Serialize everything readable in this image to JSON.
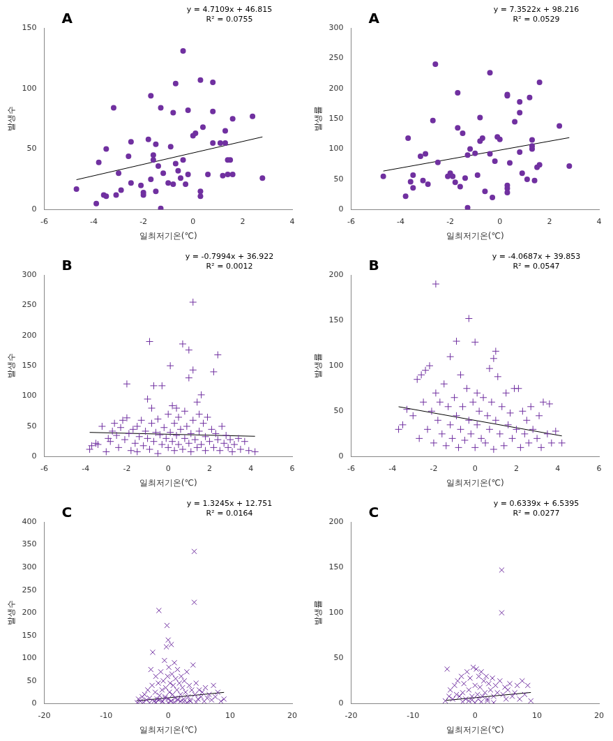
{
  "chart_data": [
    {
      "type": "scatter",
      "title": "A",
      "x_label": "일최저기온(℃)",
      "y_label": "발생수",
      "color": "#7030a0",
      "marker": "circle",
      "grid": false,
      "xlim": [
        -6,
        4
      ],
      "xticks": [
        -6,
        -4,
        -2,
        0,
        2,
        4
      ],
      "ylim": [
        0,
        150
      ],
      "yticks": [
        0,
        50,
        100,
        150
      ],
      "x": [
        -4.7,
        -3.9,
        -3.8,
        -3.6,
        -3.5,
        -3.5,
        -3.2,
        -3.1,
        -3.0,
        -2.9,
        -2.6,
        -2.5,
        -2.5,
        -2.1,
        -2.0,
        -2.0,
        -1.8,
        -1.7,
        -1.7,
        -1.6,
        -1.6,
        -1.5,
        -1.5,
        -1.4,
        -1.3,
        -1.3,
        -1.2,
        -1.0,
        -0.9,
        -0.8,
        -0.8,
        -0.7,
        -0.7,
        -0.6,
        -0.5,
        -0.4,
        -0.4,
        -0.3,
        -0.2,
        -0.2,
        0.0,
        0.1,
        0.3,
        0.3,
        0.3,
        0.4,
        0.6,
        0.8,
        0.8,
        0.8,
        1.1,
        1.2,
        1.3,
        1.3,
        1.4,
        1.4,
        1.5,
        1.6,
        1.6,
        2.4,
        2.8
      ],
      "values": [
        17,
        5,
        39,
        12,
        50,
        11,
        84,
        12,
        30,
        16,
        44,
        56,
        22,
        20,
        14,
        12,
        58,
        94,
        25,
        45,
        41,
        15,
        54,
        36,
        84,
        1,
        30,
        22,
        52,
        21,
        80,
        104,
        38,
        32,
        26,
        131,
        41,
        21,
        82,
        29,
        61,
        63,
        15,
        11,
        107,
        68,
        29,
        105,
        81,
        55,
        55,
        28,
        65,
        55,
        41,
        29,
        41,
        29,
        75,
        77,
        26
      ],
      "trendline": {
        "slope": 4.7109,
        "intercept": 46.815,
        "label": "y = 4.7109x + 46.815",
        "r2": 0.0755,
        "r2_label": "R² = 0.0755"
      }
    },
    {
      "type": "scatter",
      "title": "A",
      "x_label": "일최저기온(℃)",
      "y_label": "발생률",
      "color": "#7030a0",
      "marker": "circle",
      "grid": false,
      "xlim": [
        -6,
        4
      ],
      "xticks": [
        -6,
        -4,
        -2,
        0,
        2,
        4
      ],
      "ylim": [
        0,
        300
      ],
      "yticks": [
        0,
        50,
        100,
        150,
        200,
        250,
        300
      ],
      "x": [
        -4.7,
        -3.8,
        -3.7,
        -3.6,
        -3.5,
        -3.5,
        -3.2,
        -3.1,
        -3.0,
        -2.9,
        -2.7,
        -2.6,
        -2.5,
        -2.1,
        -2.0,
        -1.9,
        -1.8,
        -1.7,
        -1.7,
        -1.6,
        -1.5,
        -1.4,
        -1.3,
        -1.3,
        -1.2,
        -1.0,
        -0.9,
        -0.8,
        -0.8,
        -0.7,
        -0.6,
        -0.4,
        -0.4,
        -0.3,
        -0.2,
        -0.1,
        0.0,
        0.3,
        0.3,
        0.3,
        0.3,
        0.3,
        0.4,
        0.6,
        0.8,
        0.8,
        0.8,
        0.9,
        1.1,
        1.2,
        1.3,
        1.3,
        1.3,
        1.4,
        1.5,
        1.6,
        1.6,
        2.4,
        2.8
      ],
      "values": [
        55,
        22,
        118,
        46,
        57,
        36,
        88,
        48,
        92,
        42,
        147,
        240,
        78,
        55,
        60,
        55,
        45,
        193,
        135,
        38,
        126,
        52,
        90,
        3,
        100,
        93,
        57,
        152,
        113,
        118,
        30,
        226,
        92,
        20,
        80,
        120,
        116,
        188,
        190,
        40,
        35,
        28,
        77,
        145,
        95,
        178,
        160,
        60,
        50,
        185,
        100,
        105,
        115,
        48,
        70,
        210,
        74,
        138,
        72
      ],
      "trendline": {
        "slope": 7.3522,
        "intercept": 98.216,
        "label": "y = 7.3522x + 98.216",
        "r2": 0.0529,
        "r2_label": "R² = 0.0529"
      }
    },
    {
      "type": "scatter",
      "title": "B",
      "x_label": "일최저기온(℃)",
      "y_label": "발생수",
      "color": "#7030a0",
      "marker": "plus",
      "grid": false,
      "xlim": [
        -6,
        6
      ],
      "xticks": [
        -6,
        -4,
        -2,
        0,
        2,
        4,
        6
      ],
      "ylim": [
        0,
        300
      ],
      "yticks": [
        0,
        50,
        100,
        150,
        200,
        250,
        300
      ],
      "x": [
        -3.8,
        -3.7,
        -3.5,
        -3.4,
        -3.2,
        -3.0,
        -2.9,
        -2.8,
        -2.7,
        -2.6,
        -2.5,
        -2.4,
        -2.3,
        -2.2,
        -2.1,
        -2.0,
        -2.0,
        -1.9,
        -1.8,
        -1.7,
        -1.6,
        -1.5,
        -1.5,
        -1.4,
        -1.3,
        -1.2,
        -1.1,
        -1.0,
        -1.0,
        -0.9,
        -0.9,
        -0.8,
        -0.8,
        -0.7,
        -0.7,
        -0.6,
        -0.5,
        -0.5,
        -0.4,
        -0.3,
        -0.3,
        -0.2,
        -0.1,
        0.0,
        0.0,
        0.1,
        0.1,
        0.2,
        0.2,
        0.3,
        0.3,
        0.4,
        0.4,
        0.5,
        0.5,
        0.6,
        0.7,
        0.7,
        0.8,
        0.8,
        0.9,
        1.0,
        1.0,
        1.0,
        1.1,
        1.1,
        1.2,
        1.2,
        1.2,
        1.3,
        1.4,
        1.4,
        1.5,
        1.5,
        1.6,
        1.6,
        1.7,
        1.8,
        1.8,
        1.9,
        2.0,
        2.1,
        2.2,
        2.2,
        2.3,
        2.4,
        2.4,
        2.5,
        2.6,
        2.7,
        2.8,
        2.9,
        3.0,
        3.1,
        3.2,
        3.4,
        3.5,
        3.7,
        3.9,
        4.2
      ],
      "values": [
        12,
        18,
        22,
        20,
        50,
        8,
        30,
        25,
        42,
        55,
        35,
        15,
        48,
        60,
        28,
        120,
        64,
        38,
        10,
        45,
        22,
        50,
        8,
        33,
        60,
        18,
        42,
        95,
        30,
        190,
        12,
        55,
        80,
        117,
        25,
        40,
        5,
        62,
        36,
        117,
        20,
        48,
        30,
        15,
        70,
        150,
        40,
        84,
        25,
        10,
        55,
        80,
        35,
        20,
        65,
        45,
        186,
        12,
        30,
        75,
        50,
        176,
        130,
        22,
        38,
        8,
        255,
        143,
        60,
        28,
        90,
        15,
        42,
        70,
        102,
        20,
        55,
        33,
        10,
        65,
        25,
        45,
        140,
        15,
        38,
        168,
        28,
        10,
        50,
        22,
        35,
        15,
        28,
        8,
        20,
        30,
        12,
        25,
        10,
        8
      ],
      "trendline": {
        "slope": -0.7994,
        "intercept": 36.922,
        "label": "y = -0.7994x + 36.922",
        "r2": 0.0012,
        "r2_label": "R² = 0.0012"
      }
    },
    {
      "type": "scatter",
      "title": "B",
      "x_label": "일최저기온(℃)",
      "y_label": "발생률",
      "color": "#7030a0",
      "marker": "plus",
      "grid": false,
      "xlim": [
        -6,
        6
      ],
      "xticks": [
        -6,
        -4,
        -2,
        0,
        2,
        4,
        6
      ],
      "ylim": [
        0,
        200
      ],
      "yticks": [
        0,
        50,
        100,
        150,
        200
      ],
      "x": [
        -3.7,
        -3.5,
        -3.3,
        -3.0,
        -2.8,
        -2.7,
        -2.6,
        -2.5,
        -2.4,
        -2.3,
        -2.2,
        -2.1,
        -2.0,
        -1.9,
        -1.9,
        -1.8,
        -1.7,
        -1.6,
        -1.5,
        -1.4,
        -1.3,
        -1.2,
        -1.2,
        -1.1,
        -1.0,
        -0.9,
        -0.9,
        -0.8,
        -0.7,
        -0.7,
        -0.6,
        -0.5,
        -0.4,
        -0.3,
        -0.3,
        -0.2,
        -0.1,
        0.0,
        0.0,
        0.1,
        0.1,
        0.2,
        0.3,
        0.4,
        0.5,
        0.6,
        0.7,
        0.7,
        0.8,
        0.9,
        0.9,
        1.0,
        1.0,
        1.1,
        1.2,
        1.3,
        1.4,
        1.5,
        1.6,
        1.7,
        1.8,
        1.9,
        2.0,
        2.1,
        2.2,
        2.3,
        2.4,
        2.5,
        2.6,
        2.7,
        2.8,
        3.0,
        3.1,
        3.2,
        3.3,
        3.5,
        3.6,
        3.7,
        3.9,
        4.2
      ],
      "values": [
        30,
        35,
        52,
        45,
        85,
        20,
        90,
        60,
        95,
        30,
        100,
        50,
        15,
        190,
        70,
        40,
        60,
        25,
        80,
        12,
        55,
        110,
        35,
        20,
        65,
        127,
        45,
        10,
        90,
        30,
        55,
        18,
        75,
        152,
        40,
        25,
        60,
        126,
        10,
        70,
        35,
        50,
        20,
        65,
        15,
        45,
        97,
        30,
        60,
        108,
        8,
        116,
        40,
        88,
        25,
        55,
        12,
        70,
        35,
        48,
        20,
        75,
        30,
        75,
        10,
        50,
        25,
        40,
        15,
        55,
        30,
        20,
        45,
        10,
        60,
        25,
        58,
        15,
        28,
        15
      ],
      "trendline": {
        "slope": -4.0687,
        "intercept": 39.853,
        "label": "y = -4.0687x + 39.853",
        "r2": 0.0547,
        "r2_label": "R² = 0.0547"
      }
    },
    {
      "type": "scatter",
      "title": "C",
      "x_label": "일최저기온(℃)",
      "y_label": "발생수",
      "color": "#7030a0",
      "marker": "x",
      "grid": false,
      "xlim": [
        -20,
        20
      ],
      "xticks": [
        -20,
        -10,
        0,
        10,
        20
      ],
      "ylim": [
        0,
        400
      ],
      "yticks": [
        0,
        50,
        100,
        150,
        200,
        250,
        300,
        350,
        400
      ],
      "x": [
        -5,
        -4.8,
        -4.5,
        -4.2,
        -4,
        -3.8,
        -3.5,
        -3.3,
        -3,
        -2.8,
        -2.6,
        -2.5,
        -2.3,
        -2.1,
        -2,
        -1.8,
        -1.6,
        -1.5,
        -1.4,
        -1.2,
        -1,
        -0.9,
        -0.8,
        -0.6,
        -0.5,
        -0.4,
        -0.3,
        -0.2,
        -0.1,
        0,
        0,
        0.1,
        0.2,
        0.3,
        0.4,
        0.5,
        0.6,
        0.7,
        0.8,
        1,
        1.1,
        1.2,
        1.4,
        1.5,
        1.6,
        1.8,
        2,
        2.1,
        2.3,
        2.5,
        2.6,
        2.8,
        3,
        3.2,
        3.4,
        3.6,
        3.8,
        4,
        4.2,
        4.2,
        4.3,
        4.5,
        4.8,
        5,
        5.3,
        5.5,
        5.8,
        6,
        6.3,
        6.6,
        7,
        7.3,
        7.6,
        8,
        8.5,
        9,
        -3,
        -2,
        -1,
        0,
        1,
        2,
        3,
        -1.5,
        0.5,
        1.5,
        2.5,
        -0.5,
        3.5,
        4.5
      ],
      "values": [
        2,
        10,
        5,
        15,
        3,
        20,
        8,
        30,
        12,
        75,
        40,
        113,
        5,
        25,
        60,
        10,
        45,
        205,
        18,
        70,
        30,
        5,
        50,
        95,
        15,
        35,
        125,
        172,
        60,
        140,
        10,
        80,
        25,
        45,
        5,
        130,
        65,
        20,
        40,
        90,
        12,
        55,
        30,
        75,
        8,
        45,
        20,
        60,
        35,
        10,
        50,
        25,
        70,
        15,
        40,
        5,
        30,
        85,
        335,
        223,
        20,
        45,
        10,
        30,
        15,
        25,
        5,
        35,
        12,
        20,
        8,
        40,
        15,
        25,
        5,
        10,
        2,
        3,
        4,
        2,
        3,
        5,
        2,
        8,
        6,
        9,
        4,
        12,
        7,
        3
      ],
      "trendline": {
        "slope": 1.3245,
        "intercept": 12.751,
        "label": "y = 1.3245x + 12.751",
        "r2": 0.0164,
        "r2_label": "R² = 0.0164"
      }
    },
    {
      "type": "scatter",
      "title": "C",
      "x_label": "일최저기온(℃)",
      "y_label": "발생률",
      "color": "#7030a0",
      "marker": "x",
      "grid": false,
      "xlim": [
        -20,
        20
      ],
      "xticks": [
        -20,
        -10,
        0,
        10,
        20
      ],
      "ylim": [
        0,
        200
      ],
      "yticks": [
        0,
        50,
        100,
        150,
        200
      ],
      "x": [
        -4.5,
        -4.8,
        -4.2,
        -4,
        -3.6,
        -3.3,
        -3,
        -2.8,
        -2.5,
        -2.2,
        -2,
        -1.8,
        -1.5,
        -1.3,
        -1,
        -0.8,
        -0.5,
        -0.3,
        0,
        0.2,
        0.4,
        0.6,
        0.8,
        1,
        1.2,
        1.4,
        1.6,
        1.8,
        2,
        2.2,
        2.5,
        2.8,
        3,
        3.3,
        3.6,
        4,
        4.3,
        4.3,
        4.5,
        4.8,
        5,
        5.3,
        5.6,
        6,
        6.4,
        6.8,
        7.2,
        7.6,
        8,
        8.5,
        9,
        -2,
        -1,
        0,
        1,
        2,
        3,
        0.5,
        -0.5
      ],
      "values": [
        38,
        3,
        8,
        15,
        5,
        20,
        10,
        25,
        8,
        30,
        12,
        22,
        5,
        35,
        15,
        28,
        8,
        40,
        20,
        38,
        10,
        30,
        18,
        35,
        8,
        25,
        12,
        30,
        5,
        22,
        15,
        28,
        8,
        20,
        12,
        25,
        147,
        100,
        10,
        18,
        5,
        15,
        22,
        8,
        12,
        20,
        5,
        25,
        10,
        20,
        3,
        2,
        3,
        1,
        2,
        3,
        1,
        5,
        4
      ],
      "trendline": {
        "slope": 0.6339,
        "intercept": 6.5395,
        "label": "y = 0.6339x + 6.5395",
        "r2": 0.0277,
        "r2_label": "R² = 0.0277"
      }
    }
  ]
}
